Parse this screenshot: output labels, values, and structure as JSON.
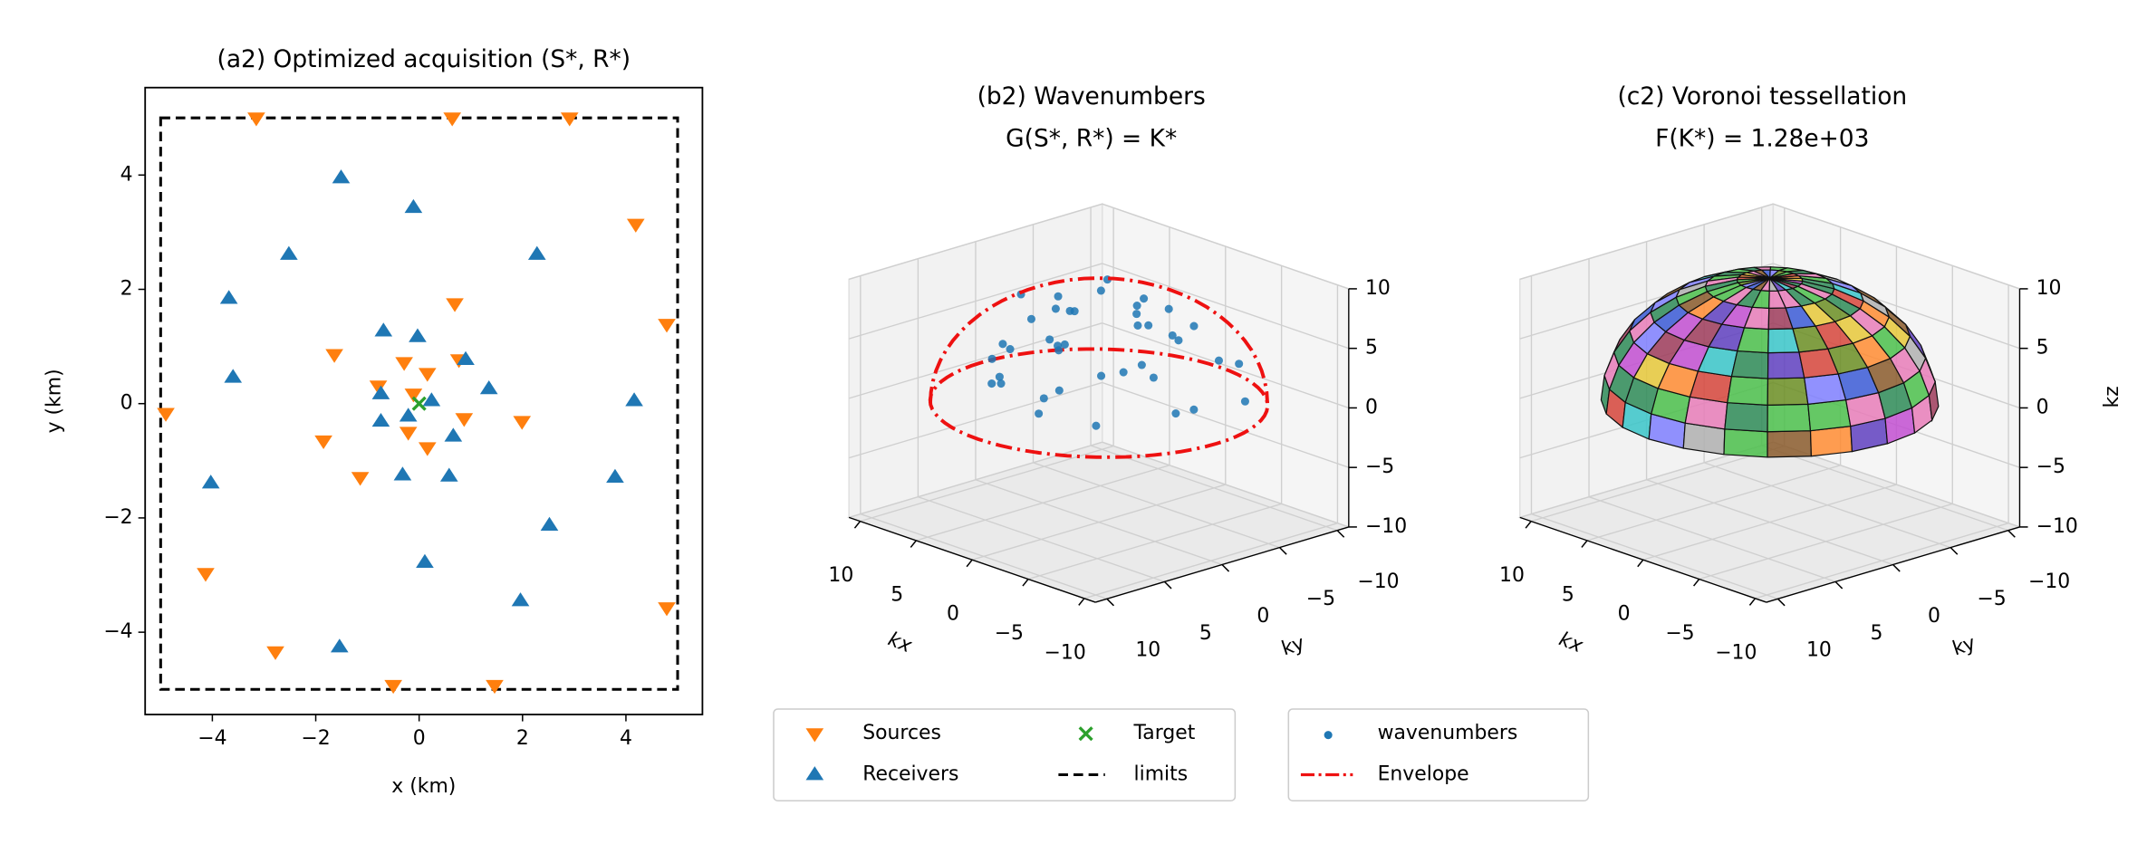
{
  "chart_data": [
    {
      "type": "scatter",
      "title": "(a2) Optimized acquisition (S*, R*)",
      "xlabel": "x (km)",
      "ylabel": "y (km)",
      "xlim": [
        -5.3,
        5.48
      ],
      "ylim": [
        -5.44,
        5.53
      ],
      "xticks": [
        {
          "value": -4,
          "label": "−4"
        },
        {
          "value": -2,
          "label": "−2"
        },
        0,
        2,
        4
      ],
      "yticks": [
        {
          "value": -4,
          "label": "−4"
        },
        {
          "value": -2,
          "label": "−2"
        },
        0,
        2,
        4
      ],
      "series": [
        {
          "name": "Sources",
          "color": "#ff7f0e",
          "marker": "v",
          "x": [
            -3.15,
            0.64,
            2.91,
            4.19,
            4.79,
            -4.9,
            0.69,
            -1.64,
            -0.29,
            0.16,
            0.77,
            -0.79,
            -0.11,
            0.87,
            -1.85,
            -0.21,
            0.16,
            1.99,
            -1.14,
            -4.13,
            -2.78,
            -0.5,
            1.46,
            4.79
          ],
          "y": [
            5.0,
            5.0,
            5.0,
            3.14,
            1.39,
            -0.17,
            1.75,
            0.86,
            0.72,
            0.53,
            0.77,
            0.31,
            0.17,
            -0.26,
            -0.65,
            -0.5,
            -0.77,
            -0.31,
            -1.29,
            -2.97,
            -4.34,
            -4.93,
            -4.93,
            -3.57
          ]
        },
        {
          "name": "Receivers",
          "color": "#1f77b4",
          "marker": "^",
          "x": [
            -1.51,
            -0.11,
            -2.52,
            2.28,
            -3.68,
            -0.69,
            -0.03,
            -3.6,
            0.9,
            1.35,
            -0.74,
            0.24,
            -0.21,
            -0.74,
            0.66,
            -0.32,
            0.58,
            4.16,
            3.79,
            -4.03,
            2.52,
            0.11,
            1.96,
            -1.54
          ],
          "y": [
            3.95,
            3.43,
            2.61,
            2.61,
            1.84,
            1.27,
            1.17,
            0.46,
            0.77,
            0.26,
            0.17,
            0.05,
            -0.22,
            -0.31,
            -0.57,
            -1.25,
            -1.27,
            0.05,
            -1.29,
            -1.39,
            -2.13,
            -2.78,
            -3.45,
            -4.26
          ]
        },
        {
          "name": "Target",
          "color": "#2ca02c",
          "marker": "x",
          "x": [
            0
          ],
          "y": [
            0
          ]
        }
      ],
      "limits": {
        "name": "limits",
        "color": "#000000",
        "x": [
          -5,
          5
        ],
        "y": [
          -5,
          5
        ]
      }
    },
    {
      "type": "scatter3d",
      "title": "(b2) Wavenumbers",
      "subtitle": "G(S*, R*) = K*",
      "xlabel": "kx",
      "ylabel": "ky",
      "xlim": [
        -11,
        11
      ],
      "ylim": [
        -11,
        11
      ],
      "zlim": [
        -10,
        10
      ],
      "xticks": [
        {
          "value": -10,
          "label": "−10"
        },
        {
          "value": -5,
          "label": "−5"
        },
        0,
        5,
        10
      ],
      "yticks": [
        {
          "value": -10,
          "label": "−10"
        },
        {
          "value": -5,
          "label": "−5"
        },
        0,
        5,
        10
      ],
      "zticks": [
        {
          "value": -10,
          "label": "−10"
        },
        {
          "value": -5,
          "label": "−5"
        },
        0,
        5,
        10
      ],
      "series": [
        {
          "name": "wavenumbers",
          "color": "#1f77b4",
          "x": [
            -8.1,
            -6.5,
            -5.2,
            -3.9,
            -2.7,
            -1.5,
            -0.4,
            0.8,
            2.1,
            3.3,
            4.6,
            5.8,
            7.2,
            8.4,
            -7.3,
            -4.8,
            -2.2,
            0.3,
            2.9,
            5.1,
            7.0,
            -6.0,
            -3.1,
            -0.9,
            1.4,
            3.8,
            6.1,
            -4.4,
            -1.7,
            0.9,
            3.5,
            -2.6,
            0.1,
            2.4,
            -0.8,
            1.6,
            -5.5,
            4.2,
            -3.6,
            6.6
          ],
          "y": [
            1.2,
            -4.1,
            5.3,
            -2.6,
            7.4,
            -6.8,
            2.9,
            -7.7,
            6.3,
            -3.4,
            4.8,
            -1.9,
            0.7,
            -3.9,
            -5.6,
            -7.5,
            5.1,
            8.2,
            -6.1,
            1.8,
            -4.7,
            3.7,
            -0.3,
            -5.2,
            4.5,
            -8.0,
            -2.4,
            0.9,
            -3.1,
            2.7,
            5.9,
            -1.2,
            -4.0,
            1.1,
            6.0,
            -2.3,
            -2.9,
            -0.6,
            3.3,
            2.2
          ],
          "z": [
            2.1,
            4.5,
            1.3,
            6.2,
            3.4,
            5.0,
            8.7,
            2.8,
            6.1,
            7.4,
            3.6,
            5.5,
            2.4,
            1.5,
            0.9,
            2.7,
            7.1,
            3.9,
            4.8,
            8.0,
            4.1,
            5.6,
            9.1,
            6.7,
            7.9,
            3.0,
            6.3,
            8.2,
            1.8,
            5.3,
            2.2,
            3.7,
            7.6,
            0.6,
            1.1,
            9.2,
            0.4,
            2.9,
            4.4,
            0.7
          ]
        }
      ],
      "envelope": {
        "name": "Envelope",
        "color": "#ee1111",
        "radius": 10.5
      }
    },
    {
      "type": "voronoi3d",
      "title": "(c2) Voronoi tessellation",
      "subtitle": "F(K*) =  1.28e+03",
      "xlabel": "kx",
      "ylabel": "ky",
      "zlabel": "kz",
      "xlim": [
        -11,
        11
      ],
      "ylim": [
        -11,
        11
      ],
      "zlim": [
        -10,
        10
      ],
      "xticks": [
        {
          "value": -10,
          "label": "−10"
        },
        {
          "value": -5,
          "label": "−5"
        },
        0,
        5,
        10
      ],
      "yticks": [
        {
          "value": -10,
          "label": "−10"
        },
        {
          "value": -5,
          "label": "−5"
        },
        0,
        5,
        10
      ],
      "zticks": [
        {
          "value": -10,
          "label": "−10"
        },
        {
          "value": -5,
          "label": "−5"
        },
        0,
        5,
        10
      ]
    }
  ]
}
